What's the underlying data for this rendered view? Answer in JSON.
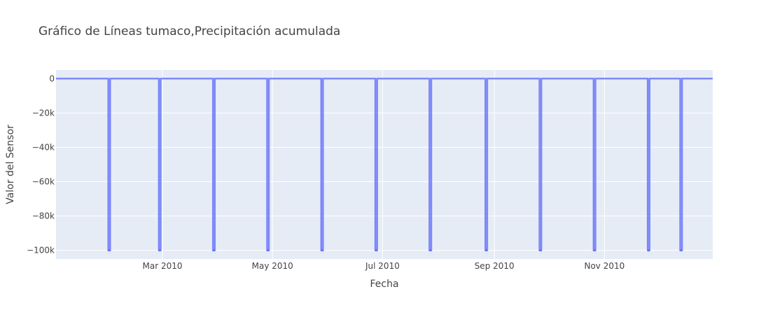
{
  "chart_data": {
    "type": "line",
    "title": "Gráfico de Líneas tumaco,Precipitación acumulada",
    "xlabel": "Fecha",
    "ylabel": "Valor del Sensor",
    "x_range": [
      "2010-01-01",
      "2010-12-31"
    ],
    "ylim": [
      -105000,
      5000
    ],
    "y_ticks": [
      0,
      -20000,
      -40000,
      -60000,
      -80000,
      -100000
    ],
    "y_tick_labels": [
      "0",
      "−20k",
      "−40k",
      "−60k",
      "−80k",
      "−100k"
    ],
    "x_ticks": [
      "2010-03-01",
      "2010-05-01",
      "2010-07-01",
      "2010-09-01",
      "2010-11-01"
    ],
    "x_tick_labels": [
      "Mar 2010",
      "May 2010",
      "Jul 2010",
      "Sep 2010",
      "Nov 2010"
    ],
    "grid": true,
    "legend": "none",
    "colors": {
      "line": "#636efa",
      "plot_bg": "#e5ecf6",
      "grid": "#ffffff"
    },
    "series": [
      {
        "baseline_value": 0,
        "drop_value": -100000,
        "drops": [
          [
            "2010-01-30",
            "2010-01-31"
          ],
          [
            "2010-02-27",
            "2010-02-28"
          ],
          [
            "2010-03-29",
            "2010-03-30"
          ],
          [
            "2010-04-28",
            "2010-04-29"
          ],
          [
            "2010-05-28",
            "2010-05-29"
          ],
          [
            "2010-06-27",
            "2010-06-28"
          ],
          [
            "2010-07-27",
            "2010-07-28"
          ],
          [
            "2010-08-27",
            "2010-08-28"
          ],
          [
            "2010-09-26",
            "2010-09-27"
          ],
          [
            "2010-10-26",
            "2010-10-27"
          ],
          [
            "2010-11-25",
            "2010-11-26"
          ],
          [
            "2010-12-13",
            "2010-12-14"
          ]
        ]
      }
    ]
  }
}
